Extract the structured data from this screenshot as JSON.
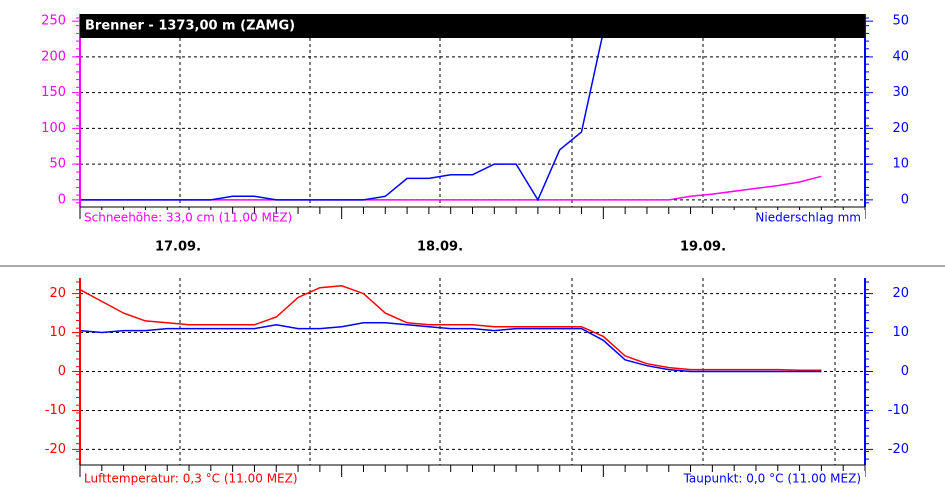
{
  "chart_data": [
    {
      "type": "line",
      "title": "Brenner - 1373,00 m (ZAMG)",
      "ylim": [
        -10,
        260
      ],
      "yticks": [
        0,
        50,
        100,
        150,
        200,
        250
      ],
      "y2lim": [
        -2,
        52
      ],
      "y2ticks": [
        0,
        10,
        20,
        30,
        40,
        50
      ],
      "grid": true,
      "x_labels": [
        "17.09.",
        "18.09.",
        "19.09."
      ],
      "series": [
        {
          "name": "Schneehöhe: 33,0 cm (11.00 MEZ)",
          "color": "#ff00ff",
          "axis": "y",
          "values": [
            0,
            0,
            0,
            0,
            0,
            0,
            0,
            0,
            0,
            0,
            0,
            0,
            0,
            0,
            0,
            0,
            0,
            0,
            0,
            0,
            0,
            0,
            0,
            0,
            0,
            0,
            0,
            0,
            5,
            8,
            12,
            16,
            20,
            25,
            33,
            null,
            null
          ]
        },
        {
          "name": "Niederschlag mm",
          "color": "#0000ff",
          "axis": "y2",
          "values": [
            0,
            0,
            0,
            0,
            0,
            0,
            0,
            1,
            1,
            0,
            0,
            0,
            0,
            0,
            1,
            6,
            6,
            7,
            7,
            10,
            10,
            0,
            14,
            19,
            47,
            null,
            null,
            null,
            null,
            null,
            null,
            null,
            null,
            null,
            null,
            null,
            null
          ]
        }
      ]
    },
    {
      "type": "line",
      "ylim": [
        -24,
        24
      ],
      "yticks": [
        -20,
        -10,
        0,
        10,
        20
      ],
      "y2lim": [
        -24,
        24
      ],
      "y2ticks": [
        -20,
        -10,
        0,
        10,
        20
      ],
      "grid": true,
      "series": [
        {
          "name": "Lufttemperatur: 0,3 °C (11.00 MEZ)",
          "color": "#ff0000",
          "axis": "y",
          "values": [
            21,
            18,
            15,
            13,
            12.5,
            12,
            12,
            12,
            12,
            14,
            19,
            21.5,
            22,
            20,
            15,
            12.5,
            12,
            12,
            12,
            11.5,
            11.5,
            11.5,
            11.5,
            11.5,
            9,
            4,
            2,
            1,
            0.5,
            0.5,
            0.5,
            0.5,
            0.5,
            0.3,
            0.3,
            null,
            null
          ]
        },
        {
          "name": "Taupunkt: 0,0 °C (11.00 MEZ)",
          "color": "#0000ff",
          "axis": "y2",
          "values": [
            10.5,
            10,
            10.5,
            10.5,
            11,
            11,
            11,
            11,
            11,
            12,
            11,
            11,
            11.5,
            12.5,
            12.5,
            12,
            11.5,
            11,
            11,
            10.5,
            11,
            11,
            11,
            11,
            8,
            3,
            1.5,
            0.5,
            0,
            0,
            0,
            0,
            0,
            0,
            0,
            null,
            null
          ]
        }
      ]
    }
  ]
}
